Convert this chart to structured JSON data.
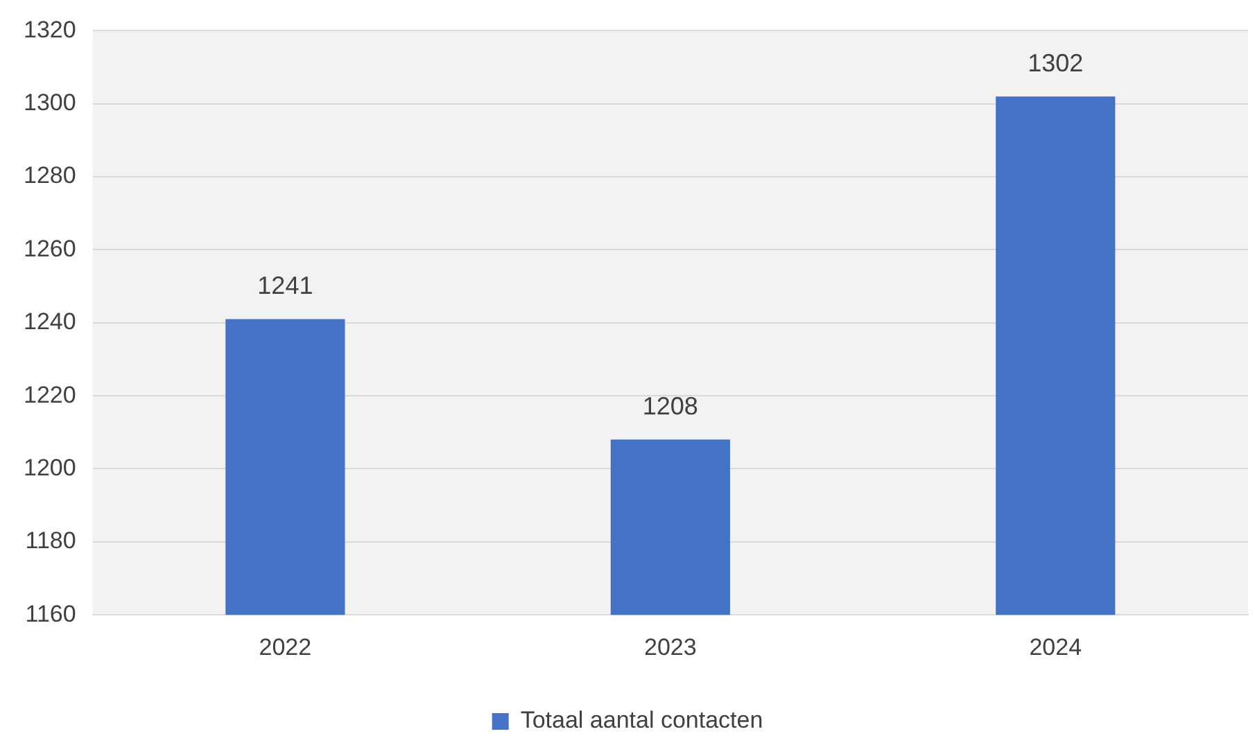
{
  "chart_data": {
    "type": "bar",
    "categories": [
      "2022",
      "2023",
      "2024"
    ],
    "series": [
      {
        "name": "Totaal aantal contacten",
        "color": "#4472c4",
        "values": [
          1241,
          1208,
          1302
        ]
      }
    ],
    "ylim": [
      1160,
      1320
    ],
    "yticks": [
      1160,
      1180,
      1200,
      1220,
      1240,
      1260,
      1280,
      1300,
      1320
    ],
    "grid": "y",
    "legend": "bottom",
    "data_labels": true
  }
}
